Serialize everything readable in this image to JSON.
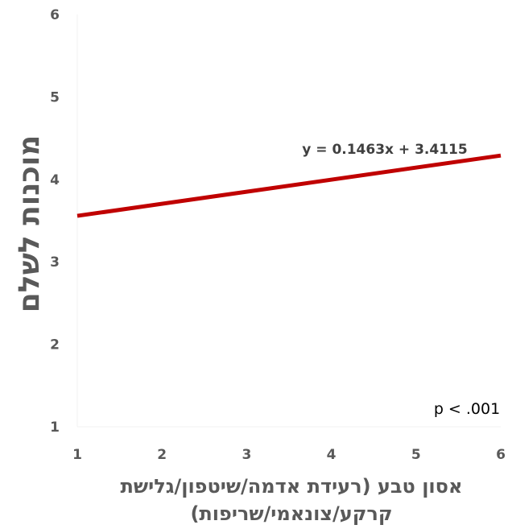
{
  "chart_data": {
    "type": "line",
    "xlabel": "אסון טבע (רעידת אדמה/שיטפון/גלישת",
    "xlabel_line2": "קרקע/צונאמי/שריפות)",
    "ylabel": "מוכנות לשלם",
    "xlim": [
      1,
      6
    ],
    "ylim": [
      1,
      6
    ],
    "x_ticks": [
      "1",
      "2",
      "3",
      "4",
      "5",
      "6"
    ],
    "y_ticks": [
      "1",
      "2",
      "3",
      "4",
      "5",
      "6"
    ],
    "grid": false,
    "series": [
      {
        "x": [
          1,
          6
        ],
        "y": [
          3.5578,
          4.2893
        ],
        "color": "#c00000"
      }
    ],
    "trendline": {
      "slope": 0.1463,
      "intercept": 3.4115
    },
    "annotations": {
      "equation": "y = 0.1463x + 3.4115",
      "p_value": "p < .001"
    }
  }
}
